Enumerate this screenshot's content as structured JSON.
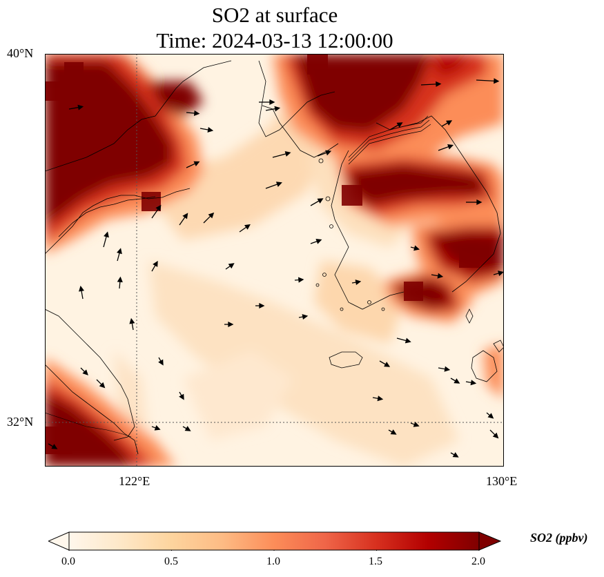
{
  "title": {
    "line1": "SO2 at surface",
    "line2": "Time: 2024-03-13 12:00:00"
  },
  "axes": {
    "lat_labels": [
      "40°N",
      "32°N"
    ],
    "lon_labels": [
      "122°E",
      "130°E"
    ],
    "lat_range": [
      31,
      40
    ],
    "lon_range": [
      120,
      130
    ],
    "gridlines": {
      "lat": [
        32
      ],
      "lon": [
        122
      ]
    }
  },
  "colorbar": {
    "title": "SO2 (ppbv)",
    "ticks": [
      "0.0",
      "0.5",
      "1.0",
      "1.5",
      "2.0"
    ],
    "range": [
      0.0,
      2.0
    ],
    "extend": "both",
    "colormap": [
      "#fff7ec",
      "#fee8c8",
      "#fdd49e",
      "#fdbb84",
      "#fc8d59",
      "#ef6548",
      "#d7301f",
      "#b30000",
      "#7f0000"
    ]
  },
  "colors": {
    "high": "#7f0000",
    "background": "#fff5e6",
    "coast": "#000000"
  }
}
